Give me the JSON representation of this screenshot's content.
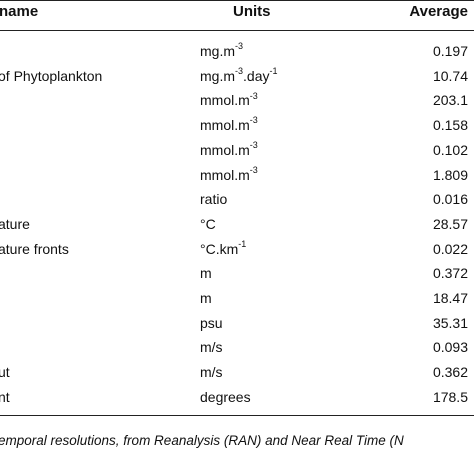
{
  "table": {
    "header": [
      "name",
      "Units",
      "Average"
    ],
    "rows": [
      [
        null,
        [
          {
            "text": "mg.m",
            "sup": "-3"
          }
        ],
        "0.197"
      ],
      [
        "of Phytoplankton",
        [
          {
            "text": "mg.m",
            "sup": "-3"
          },
          {
            "text": ".day",
            "sup": "-1"
          }
        ],
        "10.74"
      ],
      [
        null,
        [
          {
            "text": "mmol.m",
            "sup": "-3"
          }
        ],
        "203.1"
      ],
      [
        null,
        [
          {
            "text": "mmol.m",
            "sup": "-3"
          }
        ],
        "0.158"
      ],
      [
        null,
        [
          {
            "text": "mmol.m",
            "sup": "-3"
          }
        ],
        "0.102"
      ],
      [
        null,
        [
          {
            "text": "mmol.m",
            "sup": "-3"
          }
        ],
        "1.809"
      ],
      [
        null,
        [
          {
            "text": "ratio"
          }
        ],
        "0.016"
      ],
      [
        "ature",
        [
          {
            "text": "°C"
          }
        ],
        "28.57"
      ],
      [
        "ature fronts",
        [
          {
            "text": "°C.km",
            "sup": "-1"
          }
        ],
        "0.022"
      ],
      [
        null,
        [
          {
            "text": "m"
          }
        ],
        "0.372"
      ],
      [
        null,
        [
          {
            "text": "m"
          }
        ],
        "18.47"
      ],
      [
        null,
        [
          {
            "text": "psu"
          }
        ],
        "35.31"
      ],
      [
        null,
        [
          {
            "text": "m/s"
          }
        ],
        "0.093"
      ],
      [
        "ut",
        [
          {
            "text": "m/s"
          }
        ],
        "0.362"
      ],
      [
        "nt",
        [
          {
            "text": "degrees"
          }
        ],
        "178.5"
      ]
    ],
    "caption": "emporal resolutions, from Reanalysis (RAN) and Near Real Time (N"
  }
}
